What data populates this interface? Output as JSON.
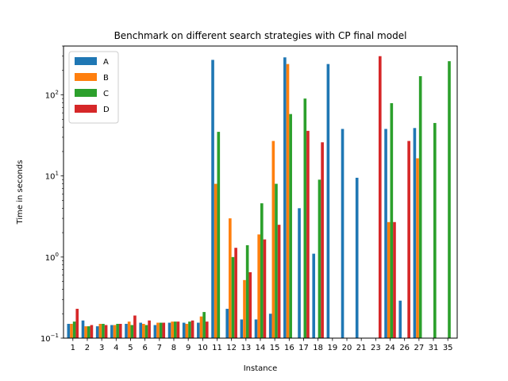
{
  "chart_data": {
    "type": "bar",
    "title": "Benchmark on different search strategies with CP final model",
    "xlabel": "Instance",
    "ylabel": "Time in seconds",
    "yscale": "log",
    "ylim": [
      0.1,
      400
    ],
    "yticks": [
      {
        "value": 0.1,
        "base": "10",
        "exp": "−1"
      },
      {
        "value": 1,
        "base": "10",
        "exp": "0"
      },
      {
        "value": 10,
        "base": "10",
        "exp": "1"
      },
      {
        "value": 100,
        "base": "10",
        "exp": "2"
      }
    ],
    "categories": [
      "1",
      "2",
      "3",
      "4",
      "5",
      "6",
      "7",
      "8",
      "9",
      "10",
      "11",
      "12",
      "13",
      "14",
      "15",
      "16",
      "17",
      "18",
      "19",
      "20",
      "21",
      "23",
      "24",
      "26",
      "27",
      "31",
      "35"
    ],
    "legend_position": "upper-left",
    "series": [
      {
        "name": "A",
        "color": "#1f77b4",
        "values": [
          0.15,
          0.165,
          0.14,
          0.145,
          0.15,
          0.155,
          0.145,
          0.155,
          0.155,
          0.155,
          270,
          0.23,
          0.17,
          0.17,
          0.2,
          290,
          4,
          1.1,
          240,
          38,
          9.5,
          null,
          38,
          0.29,
          39,
          null,
          null
        ]
      },
      {
        "name": "B",
        "color": "#ff7f0e",
        "values": [
          0.15,
          0.14,
          0.15,
          0.145,
          0.16,
          0.15,
          0.155,
          0.16,
          0.15,
          0.185,
          8,
          3,
          0.52,
          1.9,
          27,
          240,
          null,
          null,
          null,
          null,
          null,
          null,
          2.7,
          null,
          16.5,
          null,
          null
        ]
      },
      {
        "name": "C",
        "color": "#2ca02c",
        "values": [
          0.16,
          0.14,
          0.15,
          0.15,
          0.145,
          0.145,
          0.155,
          0.16,
          0.16,
          0.21,
          35,
          1.0,
          1.4,
          4.6,
          8,
          58,
          90,
          9,
          null,
          null,
          null,
          null,
          79,
          null,
          170,
          45,
          260
        ]
      },
      {
        "name": "D",
        "color": "#d62728",
        "values": [
          0.23,
          0.145,
          0.145,
          0.15,
          0.19,
          0.165,
          0.155,
          0.16,
          0.165,
          0.16,
          null,
          1.3,
          0.65,
          1.65,
          2.5,
          null,
          36,
          26,
          null,
          null,
          null,
          300,
          2.7,
          27,
          null,
          null,
          null
        ]
      }
    ]
  }
}
